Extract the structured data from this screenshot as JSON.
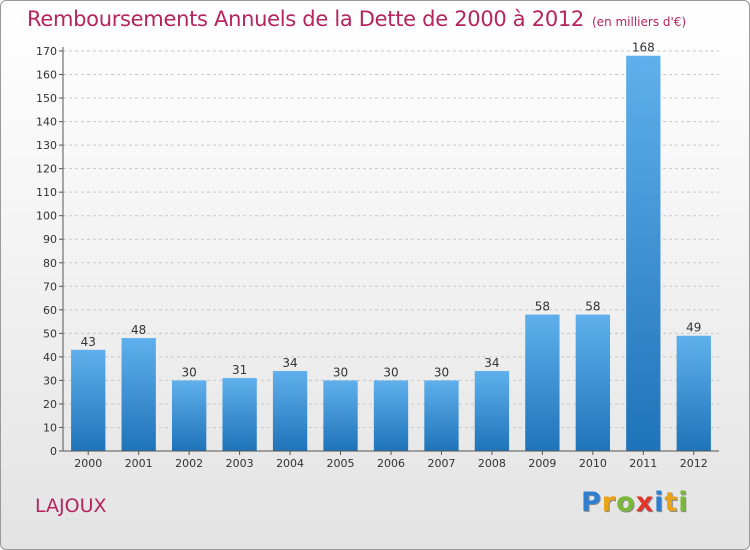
{
  "title": "Remboursements Annuels de la Dette de 2000 à 2012",
  "subtitle": "(en milliers d'€)",
  "commune": "LAJOUX",
  "logo": {
    "letters": [
      {
        "ch": "P",
        "color": "#2f7fd0"
      },
      {
        "ch": "r",
        "color": "#e8a318"
      },
      {
        "ch": "o",
        "color": "#7ab83a"
      },
      {
        "ch": "x",
        "color": "#e2342b"
      },
      {
        "ch": "i",
        "color": "#2f7fd0"
      },
      {
        "ch": "t",
        "color": "#e8a318"
      },
      {
        "ch": "i",
        "color": "#7ab83a"
      }
    ]
  },
  "chart_data": {
    "type": "bar",
    "title": "Remboursements Annuels de la Dette de 2000 à 2012",
    "subtitle": "(en milliers d'€)",
    "categories": [
      "2000",
      "2001",
      "2002",
      "2003",
      "2004",
      "2005",
      "2006",
      "2007",
      "2008",
      "2009",
      "2010",
      "2011",
      "2012"
    ],
    "values": [
      43,
      48,
      30,
      31,
      34,
      30,
      30,
      30,
      34,
      58,
      58,
      168,
      49
    ],
    "xlabel": "",
    "ylabel": "",
    "ylim": [
      0,
      170
    ],
    "yticks": [
      0,
      10,
      20,
      30,
      40,
      50,
      60,
      70,
      80,
      90,
      100,
      110,
      120,
      130,
      140,
      150,
      160,
      170
    ],
    "grid": true,
    "bar_color": "#3a92d8"
  }
}
